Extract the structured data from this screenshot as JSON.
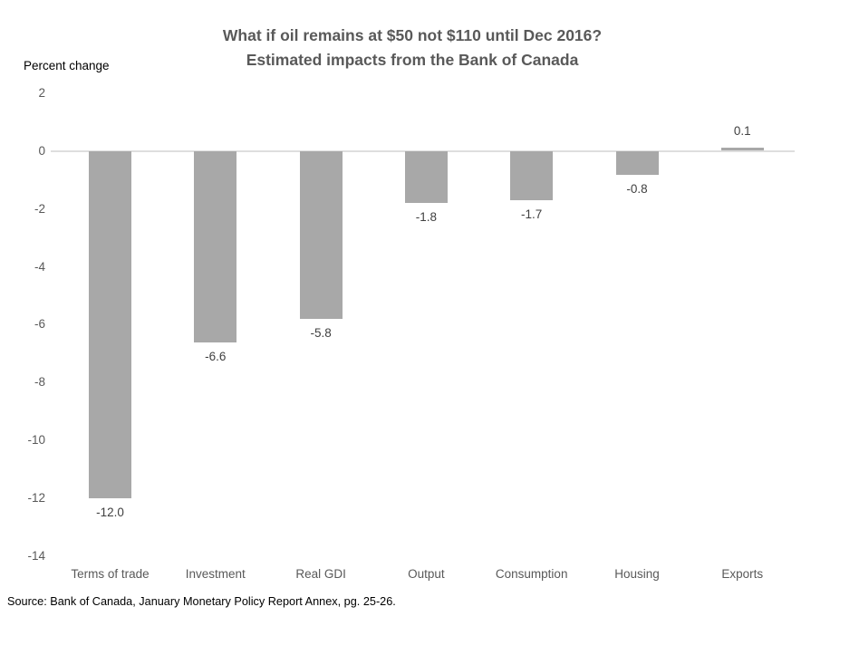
{
  "header": {
    "title_line1": "What if oil remains at $50 not $110 until Dec 2016?",
    "title_line2": "Estimated impacts from the Bank of Canada"
  },
  "axis": {
    "y_title": "Percent change"
  },
  "source": "Source: Bank of Canada, January Monetary Policy Report Annex, pg. 25-26.",
  "colors": {
    "bar": "#a8a8a8",
    "zero_line": "#dedede",
    "title_text": "#595959",
    "axis_text": "#595959",
    "data_label_text": "#404040",
    "source_text": "#000000",
    "background": "#ffffff"
  },
  "chart_data": {
    "type": "bar",
    "title": "What if oil remains at $50 not $110 until Dec 2016? Estimated impacts from the Bank of Canada",
    "ylabel": "Percent change",
    "xlabel": "",
    "categories": [
      "Terms of trade",
      "Investment",
      "Real GDI",
      "Output",
      "Consumption",
      "Housing",
      "Exports"
    ],
    "values": [
      -12.0,
      -6.6,
      -5.8,
      -1.8,
      -1.7,
      -0.8,
      0.1
    ],
    "data_labels": [
      "-12.0",
      "-6.6",
      "-5.8",
      "-1.8",
      "-1.7",
      "-0.8",
      "0.1"
    ],
    "ylim": [
      -14,
      2
    ],
    "yticks": [
      2,
      0,
      -2,
      -4,
      -6,
      -8,
      -10,
      -12,
      -14
    ],
    "grid": false,
    "legend_position": "none",
    "bar_orientation": "vertical"
  }
}
